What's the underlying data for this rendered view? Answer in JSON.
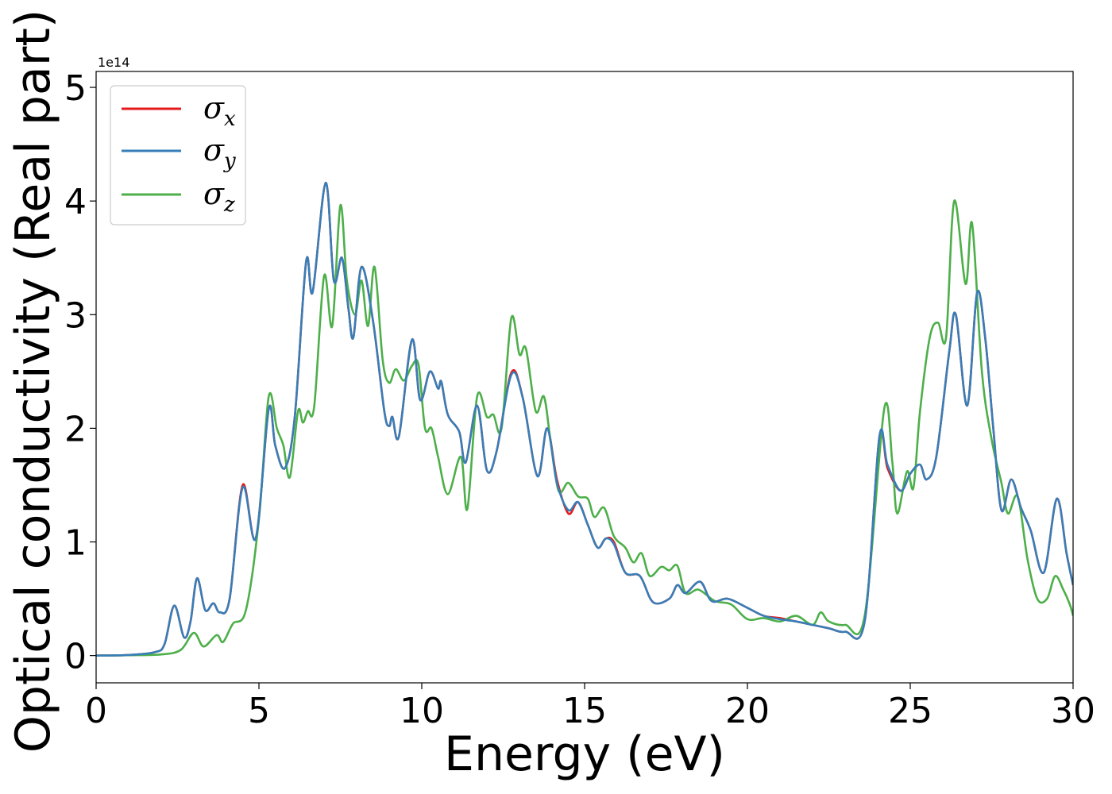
{
  "chart_data": {
    "type": "line",
    "xlabel": "Energy (eV)",
    "ylabel": "Optical conductivity (Real part)",
    "y_offset_label": "1e14",
    "xlim": [
      0,
      30
    ],
    "ylim": [
      -0.24,
      5.14
    ],
    "x_ticks": [
      0,
      5,
      10,
      15,
      20,
      25,
      30
    ],
    "y_ticks": [
      0,
      1,
      2,
      3,
      4,
      5
    ],
    "grid": false,
    "legend_position": "upper-left",
    "series": [
      {
        "name": "σx",
        "symbol": "σ",
        "subscript": "x",
        "color": "#e41a1c",
        "points": [
          [
            0,
            0
          ],
          [
            1,
            0.005
          ],
          [
            1.8,
            0.03
          ],
          [
            2.1,
            0.1
          ],
          [
            2.4,
            0.44
          ],
          [
            2.7,
            0.16
          ],
          [
            2.9,
            0.3
          ],
          [
            3.1,
            0.68
          ],
          [
            3.35,
            0.4
          ],
          [
            3.6,
            0.46
          ],
          [
            3.8,
            0.38
          ],
          [
            4.1,
            0.5
          ],
          [
            4.5,
            1.5
          ],
          [
            4.9,
            1.03
          ],
          [
            5.3,
            2.17
          ],
          [
            5.5,
            1.85
          ],
          [
            5.8,
            1.65
          ],
          [
            6.1,
            2.1
          ],
          [
            6.45,
            3.47
          ],
          [
            6.65,
            3.2
          ],
          [
            7.05,
            4.16
          ],
          [
            7.3,
            3.3
          ],
          [
            7.55,
            3.5
          ],
          [
            7.75,
            3.05
          ],
          [
            7.9,
            2.8
          ],
          [
            8.15,
            3.42
          ],
          [
            8.5,
            2.95
          ],
          [
            8.85,
            2.15
          ],
          [
            9.0,
            2.02
          ],
          [
            9.1,
            2.1
          ],
          [
            9.3,
            1.93
          ],
          [
            9.7,
            2.78
          ],
          [
            9.95,
            2.25
          ],
          [
            10.25,
            2.5
          ],
          [
            10.5,
            2.35
          ],
          [
            10.6,
            2.41
          ],
          [
            10.8,
            2.12
          ],
          [
            11.15,
            1.97
          ],
          [
            11.35,
            1.7
          ],
          [
            11.7,
            2.2
          ],
          [
            12.0,
            1.63
          ],
          [
            12.3,
            1.8
          ],
          [
            12.75,
            2.49
          ],
          [
            13.1,
            2.27
          ],
          [
            13.55,
            1.58
          ],
          [
            13.85,
            2.0
          ],
          [
            14.15,
            1.55
          ],
          [
            14.5,
            1.25
          ],
          [
            14.8,
            1.35
          ],
          [
            15.1,
            1.15
          ],
          [
            15.4,
            0.95
          ],
          [
            15.65,
            1.03
          ],
          [
            15.9,
            1.0
          ],
          [
            16.25,
            0.73
          ],
          [
            16.7,
            0.7
          ],
          [
            17.1,
            0.47
          ],
          [
            17.6,
            0.5
          ],
          [
            17.85,
            0.62
          ],
          [
            18.1,
            0.55
          ],
          [
            18.55,
            0.65
          ],
          [
            18.9,
            0.48
          ],
          [
            19.4,
            0.5
          ],
          [
            20.0,
            0.42
          ],
          [
            20.5,
            0.35
          ],
          [
            21.0,
            0.33
          ],
          [
            21.5,
            0.3
          ],
          [
            22.0,
            0.27
          ],
          [
            22.5,
            0.24
          ],
          [
            23.0,
            0.21
          ],
          [
            23.6,
            0.3
          ],
          [
            24.05,
            1.92
          ],
          [
            24.3,
            1.65
          ],
          [
            24.7,
            1.45
          ],
          [
            25.0,
            1.6
          ],
          [
            25.3,
            1.68
          ],
          [
            25.5,
            1.55
          ],
          [
            25.8,
            1.75
          ],
          [
            26.2,
            2.68
          ],
          [
            26.4,
            3.0
          ],
          [
            26.75,
            2.2
          ],
          [
            27.05,
            3.19
          ],
          [
            27.3,
            2.8
          ],
          [
            27.55,
            2.0
          ],
          [
            27.8,
            1.28
          ],
          [
            28.1,
            1.55
          ],
          [
            28.4,
            1.3
          ],
          [
            28.7,
            1.1
          ],
          [
            29.1,
            0.73
          ],
          [
            29.5,
            1.38
          ],
          [
            29.8,
            0.9
          ],
          [
            30,
            0.62
          ]
        ]
      },
      {
        "name": "σy",
        "symbol": "σ",
        "subscript": "y",
        "color": "#377eb8",
        "points": [
          [
            0,
            0
          ],
          [
            1,
            0.005
          ],
          [
            1.8,
            0.03
          ],
          [
            2.1,
            0.1
          ],
          [
            2.4,
            0.44
          ],
          [
            2.7,
            0.16
          ],
          [
            2.9,
            0.3
          ],
          [
            3.1,
            0.68
          ],
          [
            3.35,
            0.4
          ],
          [
            3.6,
            0.46
          ],
          [
            3.8,
            0.38
          ],
          [
            4.1,
            0.5
          ],
          [
            4.5,
            1.48
          ],
          [
            4.9,
            1.03
          ],
          [
            5.3,
            2.17
          ],
          [
            5.5,
            1.85
          ],
          [
            5.8,
            1.65
          ],
          [
            6.1,
            2.1
          ],
          [
            6.45,
            3.47
          ],
          [
            6.65,
            3.2
          ],
          [
            7.05,
            4.16
          ],
          [
            7.3,
            3.3
          ],
          [
            7.55,
            3.5
          ],
          [
            7.75,
            3.05
          ],
          [
            7.9,
            2.8
          ],
          [
            8.15,
            3.42
          ],
          [
            8.5,
            2.95
          ],
          [
            8.85,
            2.15
          ],
          [
            9.0,
            2.02
          ],
          [
            9.1,
            2.1
          ],
          [
            9.3,
            1.93
          ],
          [
            9.7,
            2.78
          ],
          [
            9.95,
            2.25
          ],
          [
            10.25,
            2.5
          ],
          [
            10.5,
            2.35
          ],
          [
            10.6,
            2.41
          ],
          [
            10.8,
            2.12
          ],
          [
            11.15,
            1.97
          ],
          [
            11.35,
            1.7
          ],
          [
            11.7,
            2.2
          ],
          [
            12.0,
            1.63
          ],
          [
            12.3,
            1.8
          ],
          [
            12.75,
            2.47
          ],
          [
            13.1,
            2.27
          ],
          [
            13.55,
            1.58
          ],
          [
            13.85,
            2.0
          ],
          [
            14.15,
            1.52
          ],
          [
            14.5,
            1.28
          ],
          [
            14.8,
            1.35
          ],
          [
            15.1,
            1.15
          ],
          [
            15.4,
            0.95
          ],
          [
            15.65,
            1.03
          ],
          [
            15.9,
            0.98
          ],
          [
            16.25,
            0.73
          ],
          [
            16.7,
            0.7
          ],
          [
            17.1,
            0.47
          ],
          [
            17.6,
            0.5
          ],
          [
            17.85,
            0.62
          ],
          [
            18.1,
            0.55
          ],
          [
            18.55,
            0.65
          ],
          [
            18.9,
            0.48
          ],
          [
            19.4,
            0.5
          ],
          [
            20.0,
            0.42
          ],
          [
            20.5,
            0.35
          ],
          [
            21.0,
            0.32
          ],
          [
            21.5,
            0.3
          ],
          [
            22.0,
            0.27
          ],
          [
            22.5,
            0.24
          ],
          [
            23.0,
            0.21
          ],
          [
            23.6,
            0.3
          ],
          [
            24.05,
            1.92
          ],
          [
            24.3,
            1.68
          ],
          [
            24.7,
            1.45
          ],
          [
            25.0,
            1.6
          ],
          [
            25.3,
            1.68
          ],
          [
            25.5,
            1.55
          ],
          [
            25.8,
            1.75
          ],
          [
            26.2,
            2.68
          ],
          [
            26.4,
            3.0
          ],
          [
            26.75,
            2.2
          ],
          [
            27.05,
            3.19
          ],
          [
            27.3,
            2.8
          ],
          [
            27.55,
            2.0
          ],
          [
            27.8,
            1.28
          ],
          [
            28.1,
            1.55
          ],
          [
            28.4,
            1.3
          ],
          [
            28.7,
            1.1
          ],
          [
            29.1,
            0.73
          ],
          [
            29.5,
            1.38
          ],
          [
            29.8,
            0.9
          ],
          [
            30,
            0.62
          ]
        ]
      },
      {
        "name": "σz",
        "symbol": "σ",
        "subscript": "z",
        "color": "#4daf4a",
        "points": [
          [
            0,
            0
          ],
          [
            1,
            0.003
          ],
          [
            2.0,
            0.01
          ],
          [
            2.6,
            0.05
          ],
          [
            3.0,
            0.2
          ],
          [
            3.3,
            0.08
          ],
          [
            3.7,
            0.18
          ],
          [
            3.9,
            0.12
          ],
          [
            4.2,
            0.28
          ],
          [
            4.6,
            0.4
          ],
          [
            5.0,
            1.2
          ],
          [
            5.3,
            2.28
          ],
          [
            5.55,
            2.0
          ],
          [
            5.75,
            1.85
          ],
          [
            5.95,
            1.57
          ],
          [
            6.2,
            2.15
          ],
          [
            6.35,
            2.05
          ],
          [
            6.5,
            2.15
          ],
          [
            6.7,
            2.2
          ],
          [
            7.0,
            3.34
          ],
          [
            7.25,
            2.9
          ],
          [
            7.5,
            3.96
          ],
          [
            7.7,
            3.3
          ],
          [
            7.95,
            3.0
          ],
          [
            8.15,
            3.3
          ],
          [
            8.35,
            2.9
          ],
          [
            8.55,
            3.42
          ],
          [
            8.8,
            2.6
          ],
          [
            9.0,
            2.4
          ],
          [
            9.2,
            2.52
          ],
          [
            9.45,
            2.42
          ],
          [
            9.7,
            2.55
          ],
          [
            9.9,
            2.56
          ],
          [
            10.1,
            2.0
          ],
          [
            10.3,
            2.0
          ],
          [
            10.5,
            1.75
          ],
          [
            10.8,
            1.42
          ],
          [
            11.2,
            1.75
          ],
          [
            11.4,
            1.29
          ],
          [
            11.7,
            2.28
          ],
          [
            12.0,
            2.1
          ],
          [
            12.2,
            2.12
          ],
          [
            12.45,
            2.0
          ],
          [
            12.75,
            2.97
          ],
          [
            13.0,
            2.65
          ],
          [
            13.2,
            2.7
          ],
          [
            13.5,
            2.15
          ],
          [
            13.75,
            2.28
          ],
          [
            13.95,
            1.9
          ],
          [
            14.2,
            1.45
          ],
          [
            14.5,
            1.52
          ],
          [
            14.8,
            1.4
          ],
          [
            15.1,
            1.38
          ],
          [
            15.3,
            1.22
          ],
          [
            15.6,
            1.3
          ],
          [
            15.9,
            1.05
          ],
          [
            16.25,
            0.95
          ],
          [
            16.5,
            0.82
          ],
          [
            16.75,
            0.9
          ],
          [
            17.0,
            0.7
          ],
          [
            17.35,
            0.78
          ],
          [
            17.6,
            0.75
          ],
          [
            17.85,
            0.79
          ],
          [
            18.1,
            0.55
          ],
          [
            18.5,
            0.58
          ],
          [
            19.0,
            0.48
          ],
          [
            19.5,
            0.45
          ],
          [
            20.0,
            0.32
          ],
          [
            20.5,
            0.33
          ],
          [
            21.0,
            0.3
          ],
          [
            21.5,
            0.35
          ],
          [
            22.0,
            0.27
          ],
          [
            22.25,
            0.38
          ],
          [
            22.5,
            0.3
          ],
          [
            23.0,
            0.27
          ],
          [
            23.6,
            0.35
          ],
          [
            24.2,
            2.17
          ],
          [
            24.45,
            1.7
          ],
          [
            24.6,
            1.25
          ],
          [
            24.9,
            1.62
          ],
          [
            25.1,
            1.48
          ],
          [
            25.3,
            2.15
          ],
          [
            25.6,
            2.8
          ],
          [
            25.85,
            2.93
          ],
          [
            26.1,
            2.8
          ],
          [
            26.35,
            4.0
          ],
          [
            26.7,
            3.27
          ],
          [
            26.9,
            3.8
          ],
          [
            27.2,
            2.5
          ],
          [
            27.5,
            1.9
          ],
          [
            27.8,
            1.52
          ],
          [
            28.0,
            1.25
          ],
          [
            28.3,
            1.4
          ],
          [
            28.6,
            0.85
          ],
          [
            28.9,
            0.5
          ],
          [
            29.2,
            0.5
          ],
          [
            29.45,
            0.7
          ],
          [
            29.7,
            0.58
          ],
          [
            29.9,
            0.45
          ],
          [
            30,
            0.35
          ]
        ]
      }
    ]
  }
}
